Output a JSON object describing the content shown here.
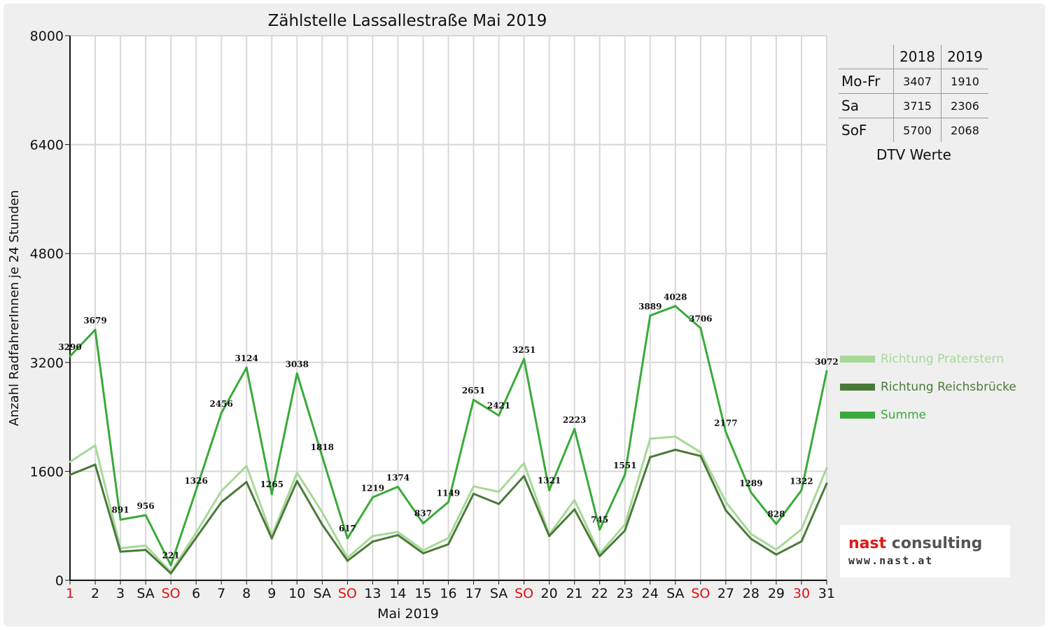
{
  "chart_data": {
    "type": "line",
    "title": "Zählstelle Lassallestraße Mai 2019",
    "ylabel": "Anzahl RadfahrerInnen je 24 Stunden",
    "xlabel": "Mai 2019",
    "ylim": [
      0,
      8000
    ],
    "y_ticks": [
      "0",
      "1600",
      "3200",
      "4800",
      "6400",
      "8000"
    ],
    "grid": true,
    "legend_position": "right",
    "categories": [
      "1",
      "2",
      "3",
      "SA",
      "SO",
      "6",
      "7",
      "8",
      "9",
      "10",
      "SA",
      "SO",
      "13",
      "14",
      "15",
      "16",
      "17",
      "SA",
      "SO",
      "20",
      "21",
      "22",
      "23",
      "24",
      "SA",
      "SO",
      "27",
      "28",
      "29",
      "30",
      "31"
    ],
    "red_category_indices": [
      0,
      4,
      11,
      18,
      25,
      29
    ],
    "series": [
      {
        "name": "Richtung Praterstern",
        "color": "#a8d898",
        "values": [
          1740,
          1980,
          470,
          510,
          120,
          700,
          1310,
          1680,
          650,
          1580,
          1000,
          330,
          650,
          710,
          440,
          620,
          1380,
          1300,
          1720,
          670,
          1180,
          390,
          820,
          2080,
          2110,
          1880,
          1150,
          680,
          450,
          750,
          1650
        ]
      },
      {
        "name": "Richtung Reichsbrücke",
        "color": "#4a7a3a",
        "values": [
          1550,
          1699,
          421,
          446,
          101,
          626,
          1146,
          1444,
          615,
          1458,
          818,
          287,
          569,
          664,
          397,
          529,
          1271,
          1121,
          1531,
          651,
          1043,
          355,
          731,
          1809,
          1918,
          1826,
          1027,
          609,
          378,
          572,
          1422
        ]
      },
      {
        "name": "Summe",
        "color": "#3aaa3a",
        "values": [
          3290,
          3679,
          891,
          956,
          221,
          1326,
          2456,
          3124,
          1265,
          3038,
          1818,
          617,
          1219,
          1374,
          837,
          1149,
          2651,
          2421,
          3251,
          1321,
          2223,
          745,
          1551,
          3889,
          4028,
          3706,
          2177,
          1289,
          828,
          1322,
          3072
        ]
      }
    ],
    "data_labels": [
      "3290",
      "3679",
      "891",
      "956",
      "221",
      "1326",
      "2456",
      "3124",
      "1265",
      "3038",
      "1818",
      "617",
      "1219",
      "1374",
      "837",
      "1149",
      "2651",
      "2421",
      "3251",
      "1321",
      "2223",
      "745",
      "1551",
      "3889",
      "4028",
      "3706",
      "2177",
      "1289",
      "828",
      "1322",
      "3072"
    ]
  },
  "dtv_table": {
    "header": [
      "2018",
      "2019"
    ],
    "rows": [
      {
        "label": "Mo-Fr",
        "v2018": "3407",
        "v2019": "1910"
      },
      {
        "label": "Sa",
        "v2018": "3715",
        "v2019": "2306"
      },
      {
        "label": "SoF",
        "v2018": "5700",
        "v2019": "2068"
      }
    ],
    "caption": "DTV Werte"
  },
  "logo": {
    "line1_red": "nast",
    "line1_dark": " consulting",
    "line2": "www.nast.at",
    "red": "#e01818"
  }
}
